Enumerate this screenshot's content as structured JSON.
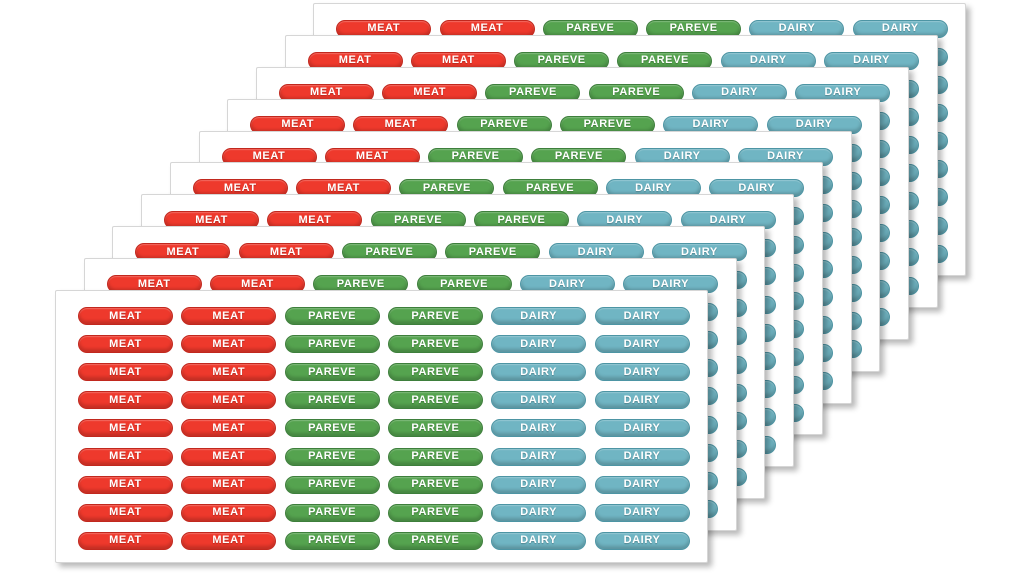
{
  "page": {
    "background_color": "#ffffff",
    "description": "Stack of fanned white sticker sheets with kosher food labels"
  },
  "stack": {
    "sheet_count": 10,
    "rows_per_sheet": 9,
    "labels_per_sheet": 54,
    "columns": [
      {
        "label": "MEAT",
        "type": "meat"
      },
      {
        "label": "MEAT",
        "type": "meat"
      },
      {
        "label": "PAREVE",
        "type": "pareve"
      },
      {
        "label": "PAREVE",
        "type": "pareve"
      },
      {
        "label": "DAIRY",
        "type": "dairy"
      },
      {
        "label": "DAIRY",
        "type": "dairy"
      }
    ],
    "label_types": [
      "MEAT",
      "PAREVE",
      "DAIRY"
    ],
    "colors": {
      "meat_fill": "#ee392c",
      "meat_border": "#c1281e",
      "pareve_fill": "#55a34f",
      "pareve_border": "#3e7f3c",
      "dairy_fill": "#70b5c3",
      "dairy_border": "#4d95a4",
      "label_text": "#ffffff",
      "sheet_fill": "#ffffff",
      "sheet_edge": "#d6d6d6"
    }
  }
}
